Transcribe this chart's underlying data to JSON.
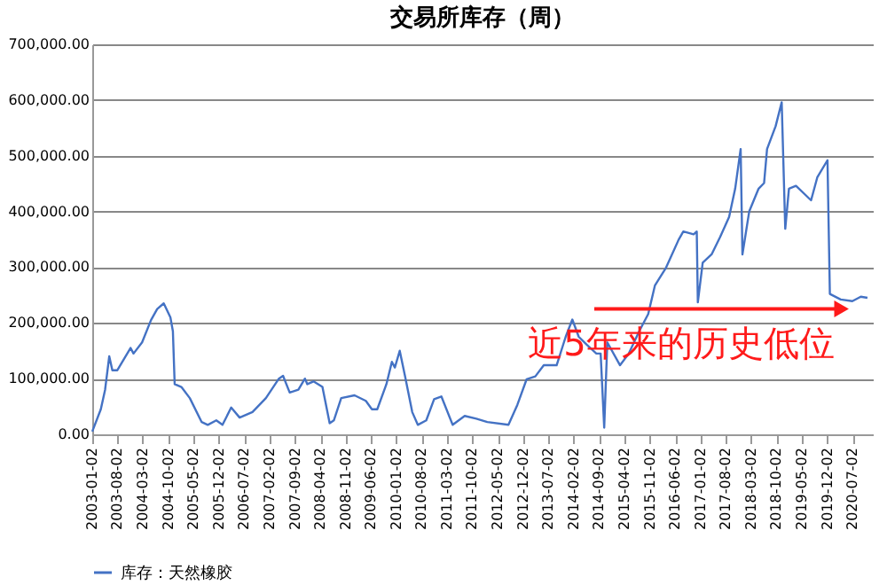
{
  "chart_data": {
    "type": "line",
    "title": "交易所库存（周）",
    "series": [
      {
        "name": "库存：天然橡胶",
        "color": "#4472c4",
        "x": [
          "2003-01-02",
          "2003-03-15",
          "2003-04-20",
          "2003-05-25",
          "2003-06-20",
          "2003-08-01",
          "2003-11-20",
          "2003-12-15",
          "2004-02-25",
          "2004-05-10",
          "2004-07-01",
          "2004-08-25",
          "2004-10-20",
          "2004-11-10",
          "2004-11-25",
          "2005-01-20",
          "2005-04-01",
          "2005-07-10",
          "2005-08-30",
          "2005-11-10",
          "2006-01-01",
          "2006-03-15",
          "2006-05-25",
          "2006-09-10",
          "2007-01-01",
          "2007-04-20",
          "2007-05-25",
          "2007-07-20",
          "2007-10-01",
          "2007-11-25",
          "2007-12-15",
          "2008-02-05",
          "2008-04-20",
          "2008-06-20",
          "2008-07-25",
          "2008-09-25",
          "2009-01-15",
          "2009-04-20",
          "2009-06-10",
          "2009-07-25",
          "2009-10-10",
          "2009-11-25",
          "2009-12-20",
          "2010-01-30",
          "2010-03-15",
          "2010-05-15",
          "2010-07-01",
          "2010-09-10",
          "2010-11-15",
          "2011-01-15",
          "2011-04-20",
          "2011-07-30",
          "2011-11-05",
          "2012-02-05",
          "2012-08-01",
          "2012-10-15",
          "2013-01-01",
          "2013-03-15",
          "2013-05-25",
          "2013-09-10",
          "2013-11-25",
          "2014-01-20",
          "2014-03-15",
          "2014-05-25",
          "2014-08-10",
          "2014-09-15",
          "2014-10-15",
          "2014-11-10",
          "2015-02-25",
          "2015-05-10",
          "2015-08-05",
          "2015-10-20",
          "2015-12-15",
          "2016-03-15",
          "2016-07-01",
          "2016-08-10",
          "2016-11-05",
          "2016-12-01",
          "2016-12-10",
          "2017-01-20",
          "2017-04-05",
          "2017-06-15",
          "2017-08-30",
          "2017-10-20",
          "2017-12-05",
          "2017-12-20",
          "2018-02-15",
          "2018-05-05",
          "2018-06-20",
          "2018-07-15",
          "2018-09-25",
          "2018-11-15",
          "2018-12-15",
          "2019-01-15",
          "2019-03-15",
          "2019-07-20",
          "2019-09-10",
          "2019-12-05",
          "2019-12-25",
          "2020-03-25",
          "2020-07-01",
          "2020-09-10",
          "2020-11-05"
        ],
        "values": [
          5000,
          45000,
          80000,
          140000,
          115000,
          115000,
          155000,
          145000,
          165000,
          205000,
          225000,
          235000,
          210000,
          185000,
          90000,
          85000,
          65000,
          22000,
          17000,
          25000,
          17000,
          48000,
          30000,
          40000,
          65000,
          100000,
          105000,
          75000,
          80000,
          100000,
          90000,
          95000,
          85000,
          20000,
          25000,
          65000,
          70000,
          60000,
          45000,
          45000,
          90000,
          130000,
          120000,
          150000,
          105000,
          40000,
          17000,
          25000,
          63000,
          68000,
          17000,
          33000,
          28000,
          22000,
          17000,
          53000,
          99000,
          104000,
          124000,
          124000,
          175000,
          206000,
          175000,
          160000,
          145000,
          145000,
          12000,
          165000,
          124000,
          145000,
          185000,
          216000,
          267000,
          298000,
          349000,
          364000,
          359000,
          364000,
          237000,
          308000,
          323000,
          354000,
          390000,
          441000,
          512000,
          323000,
          400000,
          441000,
          451000,
          512000,
          553000,
          596000,
          369000,
          441000,
          446000,
          420000,
          461000,
          492000,
          252000,
          242000,
          239000,
          247000,
          245000
        ]
      }
    ],
    "xlim": [
      "2003-01-02",
      "2020-12-20"
    ],
    "xticks": [
      "2003-01-02",
      "2003-08-02",
      "2004-03-02",
      "2004-10-02",
      "2005-05-02",
      "2005-12-02",
      "2006-07-02",
      "2007-02-02",
      "2007-09-02",
      "2008-04-02",
      "2008-11-02",
      "2009-06-02",
      "2010-01-02",
      "2010-08-02",
      "2011-03-02",
      "2011-10-02",
      "2012-05-02",
      "2012-12-02",
      "2013-07-02",
      "2014-02-02",
      "2014-09-02",
      "2015-04-02",
      "2015-11-02",
      "2016-06-02",
      "2017-01-02",
      "2017-08-02",
      "2018-03-02",
      "2018-10-02",
      "2019-05-02",
      "2019-12-02",
      "2020-07-02"
    ],
    "ylim": [
      0,
      700000
    ],
    "yticks": [
      {
        "value": 0,
        "label": "0.00"
      },
      {
        "value": 100000,
        "label": "100,000.00"
      },
      {
        "value": 200000,
        "label": "200,000.00"
      },
      {
        "value": 300000,
        "label": "300,000.00"
      },
      {
        "value": 400000,
        "label": "400,000.00"
      },
      {
        "value": 500000,
        "label": "500,000.00"
      },
      {
        "value": 600000,
        "label": "600,000.00"
      },
      {
        "value": 700000,
        "label": "700,000.00"
      }
    ],
    "grid": "y",
    "legend": "bottom",
    "marker": "none",
    "line_style": "solid",
    "annotations": [
      {
        "text": "近5年来的历史低位",
        "x": "2020-04-01",
        "y": 225000
      }
    ]
  }
}
